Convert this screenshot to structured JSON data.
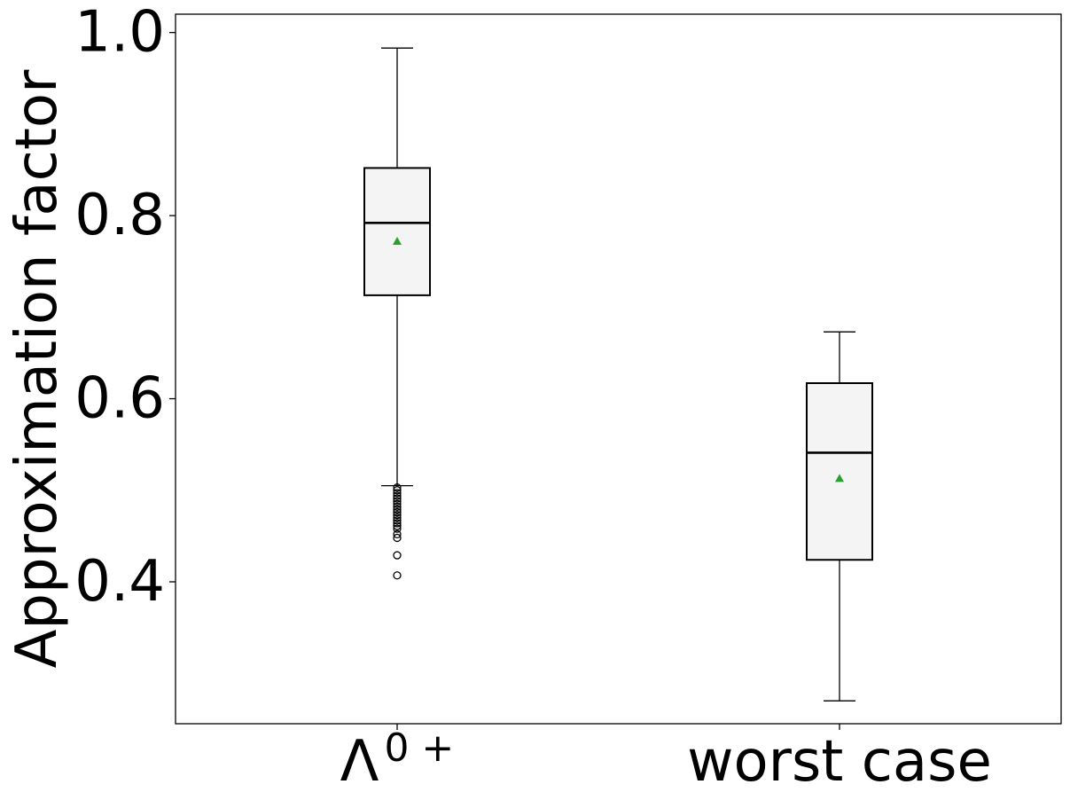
{
  "chart_data": {
    "type": "box",
    "title": "",
    "xlabel": "",
    "ylabel": "Approximation factor",
    "ylim": [
      0.245,
      1.02
    ],
    "yticks": [
      {
        "value": 0.4,
        "label": "0.4"
      },
      {
        "value": 0.6,
        "label": "0.6"
      },
      {
        "value": 0.8,
        "label": "0.8"
      },
      {
        "value": 1.0,
        "label": "1.0"
      }
    ],
    "grid": false,
    "categories": [
      {
        "label_base": "Λ",
        "label_sup": "0 +"
      },
      {
        "label_base": "worst case",
        "label_sup": ""
      }
    ],
    "boxes": [
      {
        "whisker_low": 0.505,
        "q1": 0.713,
        "median": 0.792,
        "q3": 0.852,
        "whisker_high": 0.983,
        "mean": 0.772,
        "outliers": [
          0.503,
          0.5,
          0.497,
          0.494,
          0.491,
          0.488,
          0.485,
          0.482,
          0.479,
          0.476,
          0.473,
          0.47,
          0.467,
          0.464,
          0.461,
          0.458,
          0.452,
          0.448,
          0.429,
          0.407
        ]
      },
      {
        "whisker_low": 0.27,
        "q1": 0.424,
        "median": 0.541,
        "q3": 0.617,
        "whisker_high": 0.673,
        "mean": 0.513,
        "outliers": []
      }
    ],
    "colors": {
      "box_fill": "#f4f4f4",
      "box_edge": "#000000",
      "mean_marker": "#2ca02c",
      "outlier_edge": "#000000"
    }
  }
}
